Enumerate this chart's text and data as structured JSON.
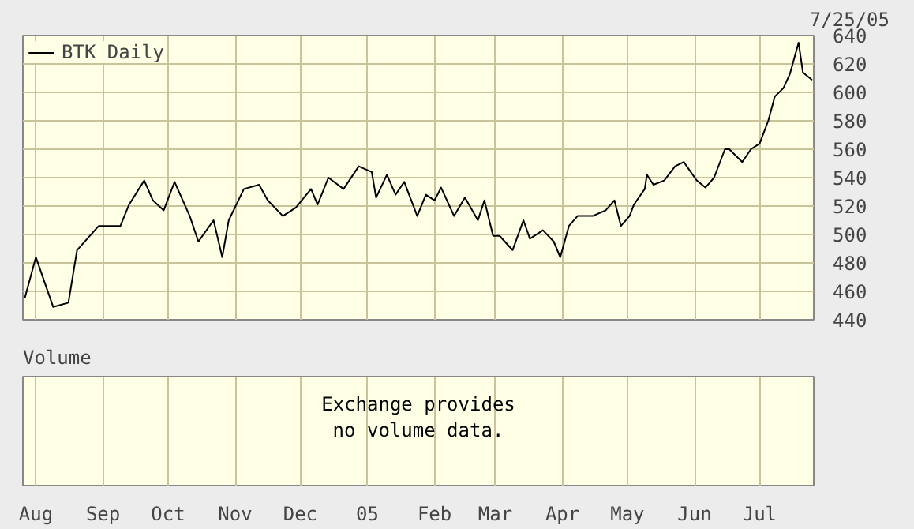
{
  "chart_data": [
    {
      "type": "line",
      "annotations": [
        "7/25/05"
      ],
      "xlim": [
        "2004-07-26",
        "2005-07-26"
      ],
      "ylim": [
        440,
        640
      ],
      "xticks": [
        {
          "value": "2004-08-01",
          "label": "Aug"
        },
        {
          "value": "2004-09-01",
          "label": "Sep"
        },
        {
          "value": "2004-10-01",
          "label": "Oct"
        },
        {
          "value": "2004-11-01",
          "label": "Nov"
        },
        {
          "value": "2004-12-01",
          "label": "Dec"
        },
        {
          "value": "2005-01-01",
          "label": "05"
        },
        {
          "value": "2005-02-01",
          "label": "Feb"
        },
        {
          "value": "2005-03-01",
          "label": "Mar"
        },
        {
          "value": "2005-04-01",
          "label": "Apr"
        },
        {
          "value": "2005-05-01",
          "label": "May"
        },
        {
          "value": "2005-06-01",
          "label": "Jun"
        },
        {
          "value": "2005-07-01",
          "label": "Jul"
        }
      ],
      "yticks": [
        440,
        460,
        480,
        500,
        520,
        540,
        560,
        580,
        600,
        620,
        640
      ],
      "tick_labels": "y",
      "grid": true,
      "legend": "top left",
      "series": [
        {
          "name": "BTK Daily",
          "color": "#000000",
          "x": [
            "2004-07-27",
            "2004-08-01",
            "2004-08-09",
            "2004-08-16",
            "2004-08-20",
            "2004-08-30",
            "2004-09-09",
            "2004-09-13",
            "2004-09-20",
            "2004-09-24",
            "2004-09-29",
            "2004-10-04",
            "2004-10-11",
            "2004-10-15",
            "2004-10-22",
            "2004-10-26",
            "2004-10-29",
            "2004-11-05",
            "2004-11-12",
            "2004-11-16",
            "2004-11-23",
            "2004-11-29",
            "2004-12-06",
            "2004-12-09",
            "2004-12-14",
            "2004-12-21",
            "2004-12-28",
            "2005-01-03",
            "2005-01-05",
            "2005-01-10",
            "2005-01-14",
            "2005-01-18",
            "2005-01-24",
            "2005-01-28",
            "2005-02-01",
            "2005-02-04",
            "2005-02-10",
            "2005-02-15",
            "2005-02-21",
            "2005-02-24",
            "2005-02-28",
            "2005-03-03",
            "2005-03-09",
            "2005-03-14",
            "2005-03-17",
            "2005-03-23",
            "2005-03-28",
            "2005-03-31",
            "2005-04-04",
            "2005-04-08",
            "2005-04-15",
            "2005-04-21",
            "2005-04-25",
            "2005-04-28",
            "2005-05-02",
            "2005-05-04",
            "2005-05-09",
            "2005-05-10",
            "2005-05-13",
            "2005-05-18",
            "2005-05-23",
            "2005-05-27",
            "2005-06-02",
            "2005-06-06",
            "2005-06-10",
            "2005-06-15",
            "2005-06-17",
            "2005-06-23",
            "2005-06-27",
            "2005-07-01",
            "2005-07-05",
            "2005-07-08",
            "2005-07-12",
            "2005-07-15",
            "2005-07-19",
            "2005-07-21",
            "2005-07-25"
          ],
          "values": [
            456,
            484,
            449,
            452,
            489,
            506,
            506,
            521,
            538,
            524,
            517,
            537,
            513,
            495,
            510,
            484,
            510,
            532,
            535,
            524,
            513,
            519,
            532,
            521,
            540,
            532,
            548,
            544,
            526,
            542,
            528,
            537,
            513,
            528,
            524,
            533,
            513,
            526,
            510,
            524,
            499,
            499,
            489,
            510,
            497,
            503,
            495,
            484,
            506,
            513,
            513,
            517,
            524,
            506,
            513,
            521,
            532,
            542,
            535,
            538,
            548,
            551,
            538,
            533,
            540,
            560,
            560,
            551,
            560,
            564,
            580,
            597,
            603,
            613,
            635,
            614,
            609
          ]
        }
      ]
    },
    {
      "type": "other",
      "title": "Volume",
      "annotations": [
        "Exchange provides\nno volume data."
      ]
    }
  ]
}
